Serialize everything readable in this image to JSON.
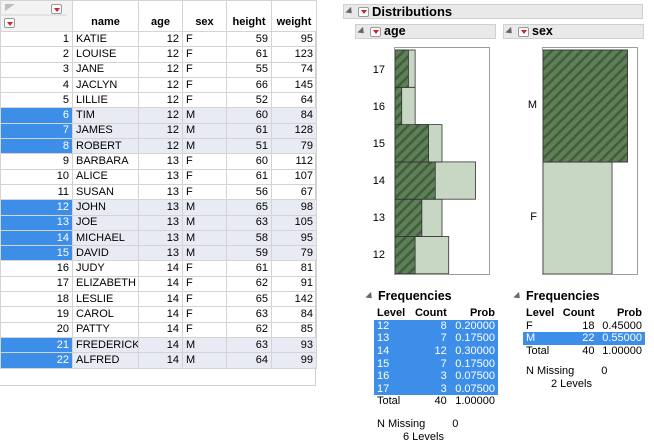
{
  "table": {
    "columns": [
      "name",
      "age",
      "sex",
      "height",
      "weight"
    ],
    "rows": [
      {
        "n": "1",
        "name": "KATIE",
        "age": "12",
        "sex": "F",
        "height": "59",
        "weight": "95",
        "selected": false
      },
      {
        "n": "2",
        "name": "LOUISE",
        "age": "12",
        "sex": "F",
        "height": "61",
        "weight": "123",
        "selected": false
      },
      {
        "n": "3",
        "name": "JANE",
        "age": "12",
        "sex": "F",
        "height": "55",
        "weight": "74",
        "selected": false
      },
      {
        "n": "4",
        "name": "JACLYN",
        "age": "12",
        "sex": "F",
        "height": "66",
        "weight": "145",
        "selected": false
      },
      {
        "n": "5",
        "name": "LILLIE",
        "age": "12",
        "sex": "F",
        "height": "52",
        "weight": "64",
        "selected": false
      },
      {
        "n": "6",
        "name": "TIM",
        "age": "12",
        "sex": "M",
        "height": "60",
        "weight": "84",
        "selected": true
      },
      {
        "n": "7",
        "name": "JAMES",
        "age": "12",
        "sex": "M",
        "height": "61",
        "weight": "128",
        "selected": true
      },
      {
        "n": "8",
        "name": "ROBERT",
        "age": "12",
        "sex": "M",
        "height": "51",
        "weight": "79",
        "selected": true
      },
      {
        "n": "9",
        "name": "BARBARA",
        "age": "13",
        "sex": "F",
        "height": "60",
        "weight": "112",
        "selected": false
      },
      {
        "n": "10",
        "name": "ALICE",
        "age": "13",
        "sex": "F",
        "height": "61",
        "weight": "107",
        "selected": false
      },
      {
        "n": "11",
        "name": "SUSAN",
        "age": "13",
        "sex": "F",
        "height": "56",
        "weight": "67",
        "selected": false
      },
      {
        "n": "12",
        "name": "JOHN",
        "age": "13",
        "sex": "M",
        "height": "65",
        "weight": "98",
        "selected": true
      },
      {
        "n": "13",
        "name": "JOE",
        "age": "13",
        "sex": "M",
        "height": "63",
        "weight": "105",
        "selected": true
      },
      {
        "n": "14",
        "name": "MICHAEL",
        "age": "13",
        "sex": "M",
        "height": "58",
        "weight": "95",
        "selected": true
      },
      {
        "n": "15",
        "name": "DAVID",
        "age": "13",
        "sex": "M",
        "height": "59",
        "weight": "79",
        "selected": true
      },
      {
        "n": "16",
        "name": "JUDY",
        "age": "14",
        "sex": "F",
        "height": "61",
        "weight": "81",
        "selected": false
      },
      {
        "n": "17",
        "name": "ELIZABETH",
        "age": "14",
        "sex": "F",
        "height": "62",
        "weight": "91",
        "selected": false
      },
      {
        "n": "18",
        "name": "LESLIE",
        "age": "14",
        "sex": "F",
        "height": "65",
        "weight": "142",
        "selected": false
      },
      {
        "n": "19",
        "name": "CAROL",
        "age": "14",
        "sex": "F",
        "height": "63",
        "weight": "84",
        "selected": false
      },
      {
        "n": "20",
        "name": "PATTY",
        "age": "14",
        "sex": "F",
        "height": "62",
        "weight": "85",
        "selected": false
      },
      {
        "n": "21",
        "name": "FREDERICK",
        "age": "14",
        "sex": "M",
        "height": "63",
        "weight": "93",
        "selected": true
      },
      {
        "n": "22",
        "name": "ALFRED",
        "age": "14",
        "sex": "M",
        "height": "64",
        "weight": "99",
        "selected": true
      }
    ]
  },
  "report": {
    "title": "Distributions",
    "age": {
      "title": "age",
      "levels": [
        "12",
        "13",
        "14",
        "15",
        "16",
        "17"
      ],
      "counts": [
        8,
        7,
        12,
        7,
        3,
        3
      ],
      "selected_counts": [
        3,
        4,
        6,
        5,
        1,
        2
      ],
      "frequencies": {
        "title": "Frequencies",
        "headers": [
          "Level",
          "Count",
          "Prob"
        ],
        "rows": [
          {
            "level": "12",
            "count": "8",
            "prob": "0.20000"
          },
          {
            "level": "13",
            "count": "7",
            "prob": "0.17500"
          },
          {
            "level": "14",
            "count": "12",
            "prob": "0.30000"
          },
          {
            "level": "15",
            "count": "7",
            "prob": "0.17500"
          },
          {
            "level": "16",
            "count": "3",
            "prob": "0.07500"
          },
          {
            "level": "17",
            "count": "3",
            "prob": "0.07500"
          }
        ],
        "total_label": "Total",
        "total_count": "40",
        "total_prob": "1.00000",
        "n_missing_label": "N Missing",
        "n_missing": "0",
        "levels_text": "6 Levels"
      }
    },
    "sex": {
      "title": "sex",
      "levels": [
        "F",
        "M"
      ],
      "counts": [
        18,
        22
      ],
      "selected_counts": [
        0,
        22
      ],
      "frequencies": {
        "title": "Frequencies",
        "headers": [
          "Level",
          "Count",
          "Prob"
        ],
        "rows": [
          {
            "level": "F",
            "count": "18",
            "prob": "0.45000",
            "selected": false
          },
          {
            "level": "M",
            "count": "22",
            "prob": "0.55000",
            "selected": true
          }
        ],
        "total_label": "Total",
        "total_count": "40",
        "total_prob": "1.00000",
        "n_missing_label": "N Missing",
        "n_missing": "0",
        "levels_text": "2 Levels"
      }
    },
    "colors": {
      "bar_fill": "#c8d6c4",
      "selected_fill": "#5e7f58",
      "hatch": "#3f5e39",
      "selection": "#3d8ee8"
    }
  }
}
